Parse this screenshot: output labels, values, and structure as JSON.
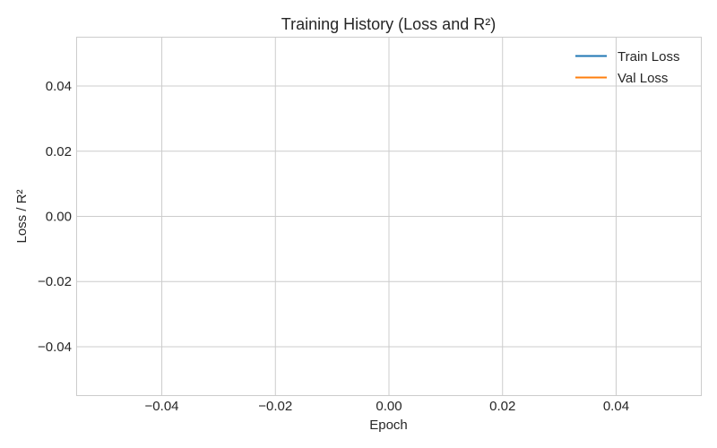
{
  "chart_data": {
    "type": "line",
    "title": "Training History (Loss and R²)",
    "xlabel": "Epoch",
    "ylabel": "Loss / R²",
    "xlim": [
      -0.055,
      0.055
    ],
    "ylim": [
      -0.055,
      0.055
    ],
    "xticks": [
      -0.04,
      -0.02,
      0.0,
      0.02,
      0.04
    ],
    "yticks": [
      -0.04,
      -0.02,
      0.0,
      0.02,
      0.04
    ],
    "xtick_labels": [
      "−0.04",
      "−0.02",
      "0.00",
      "0.02",
      "0.04"
    ],
    "ytick_labels": [
      "−0.04",
      "−0.02",
      "0.00",
      "0.02",
      "0.04"
    ],
    "grid": true,
    "legend_position": "top-right",
    "series": [
      {
        "name": "Train Loss",
        "color": "#1f77b4",
        "x": [],
        "y": []
      },
      {
        "name": "Val Loss",
        "color": "#ff7f0e",
        "x": [],
        "y": []
      }
    ]
  }
}
